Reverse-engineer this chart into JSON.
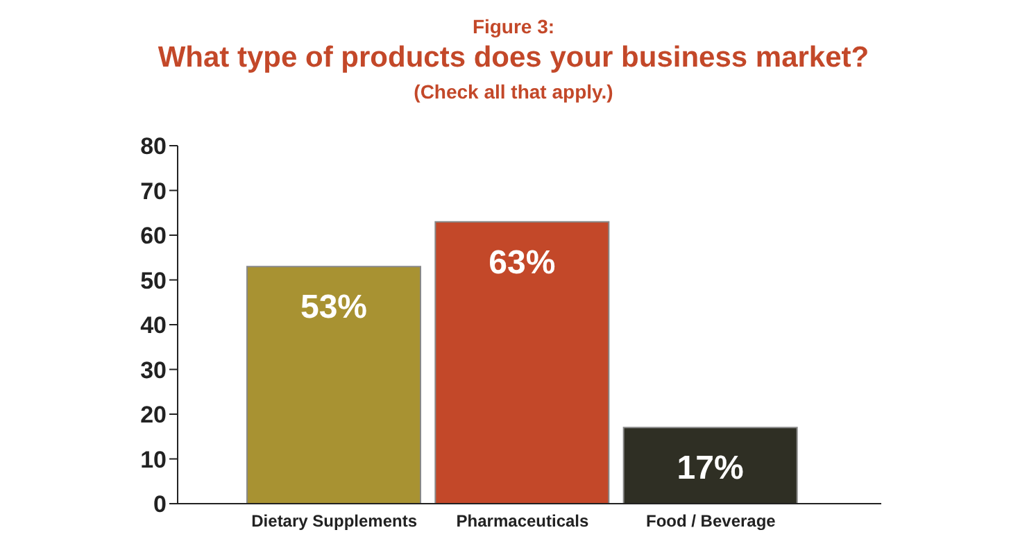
{
  "chart_data": {
    "type": "bar",
    "title": "Figure 3:",
    "subtitle": "What type of products does your business market?",
    "annotations": [
      "(Check all that apply.)"
    ],
    "categories": [
      "Dietary Supplements",
      "Pharmaceuticals",
      "Food / Beverage"
    ],
    "values": [
      53,
      63,
      17
    ],
    "colors": [
      "#a89232",
      "#c34829",
      "#2f2f24"
    ],
    "value_labels": [
      "53%",
      "63%",
      "17%"
    ],
    "ylim": [
      0,
      80
    ],
    "yticks": [
      0,
      10,
      20,
      30,
      40,
      50,
      60,
      70,
      80
    ],
    "grid": false
  }
}
